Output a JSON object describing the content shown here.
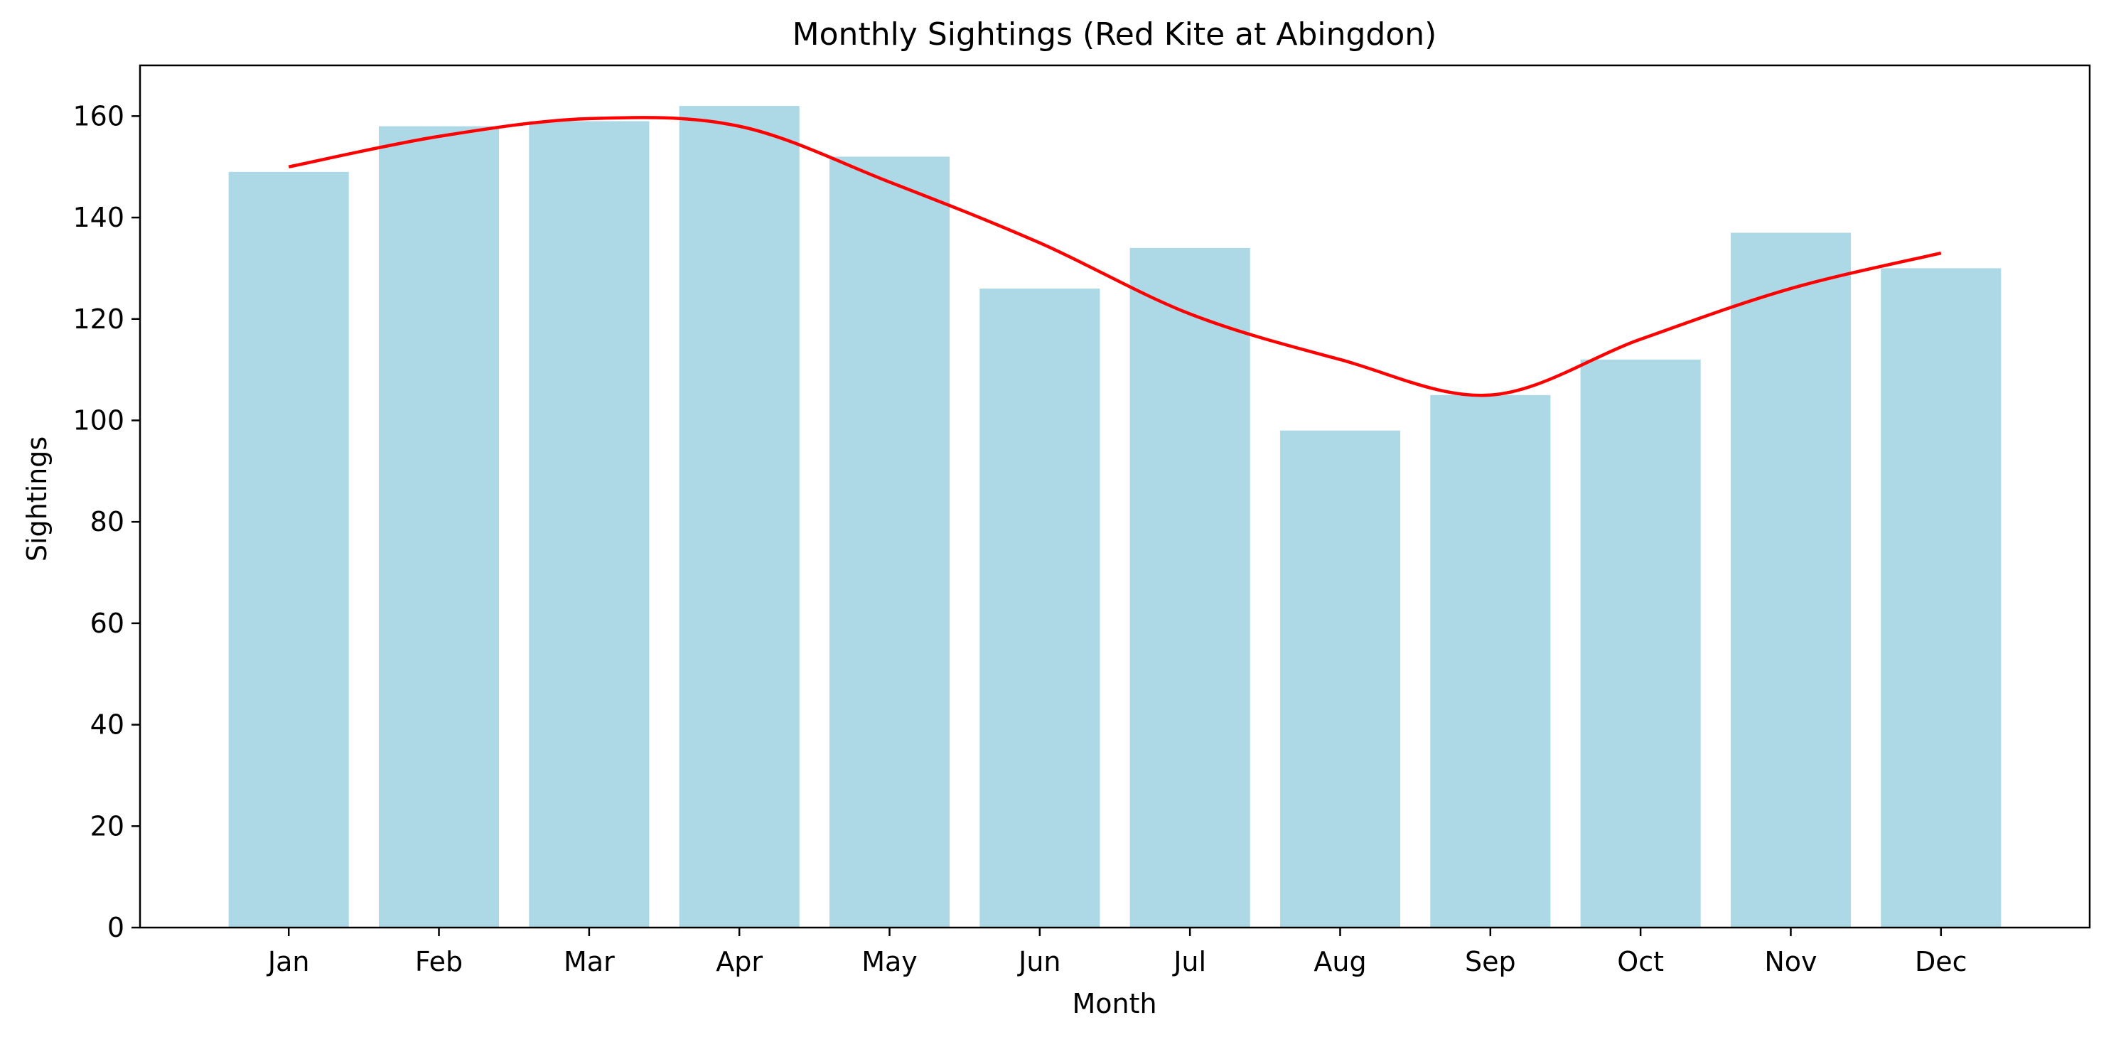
{
  "chart_data": {
    "type": "bar",
    "title": "Monthly Sightings (Red Kite at Abingdon)",
    "xlabel": "Month",
    "ylabel": "Sightings",
    "categories": [
      "Jan",
      "Feb",
      "Mar",
      "Apr",
      "May",
      "Jun",
      "Jul",
      "Aug",
      "Sep",
      "Oct",
      "Nov",
      "Dec"
    ],
    "series": [
      {
        "type": "bar",
        "color": "#add8e6",
        "values": [
          149,
          158,
          159,
          162,
          152,
          126,
          134,
          98,
          105,
          112,
          137,
          130
        ]
      },
      {
        "type": "line",
        "color": "#ff0000",
        "values": [
          150,
          156,
          159.5,
          158,
          147,
          135,
          121,
          112,
          105,
          116,
          126,
          133
        ]
      }
    ],
    "ylim": [
      0,
      170
    ],
    "yticks": [
      0,
      20,
      40,
      60,
      80,
      100,
      120,
      140,
      160
    ],
    "grid": false,
    "legend": "none"
  }
}
